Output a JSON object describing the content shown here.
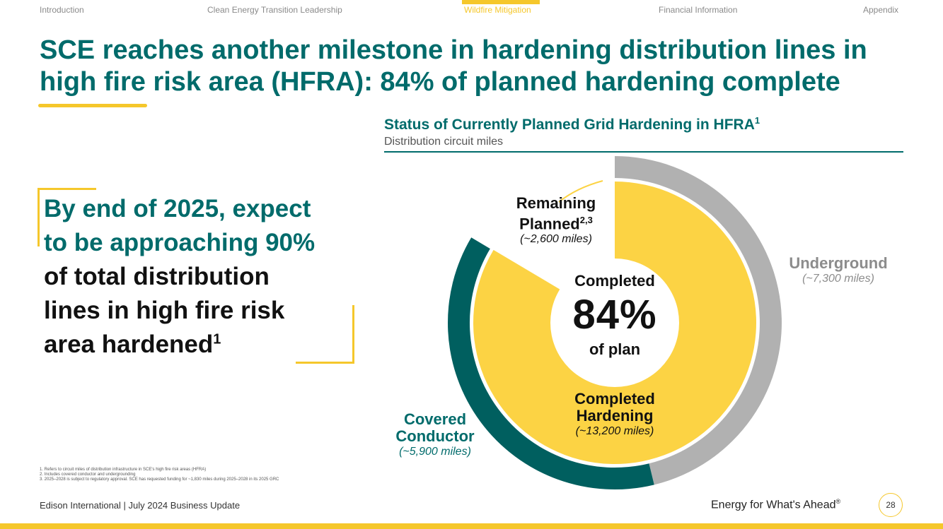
{
  "nav": {
    "items": [
      "Introduction",
      "Clean Energy Transition Leadership",
      "Wildfire Mitigation",
      "Financial Information",
      "Appendix"
    ],
    "active": "Wildfire Mitigation"
  },
  "title": {
    "line1": "SCE reaches another milestone in hardening distribution lines in",
    "line2": "high fire risk area (HFRA): 84% of planned hardening complete"
  },
  "callout": {
    "hl1": "By end of 2025, expect",
    "hl2": "to be approaching 90%",
    "body1": "of total distribution",
    "body2": "lines in high fire risk",
    "body3": "area hardened",
    "body3_sup": "1"
  },
  "chart": {
    "title": "Status of Currently Planned Grid Hardening in HFRA",
    "title_sup": "1",
    "subtitle": "Distribution circuit miles",
    "center_top": "Completed",
    "center_value": "84%",
    "center_bottom": "of plan",
    "labels": {
      "remaining_line1": "Remaining",
      "remaining_line2": "Planned",
      "remaining_sup": "2,3",
      "remaining_miles": "(~2,600 miles)",
      "underground": "Underground",
      "underground_miles": "(~7,300 miles)",
      "completed_line1": "Completed",
      "completed_line2": "Hardening",
      "completed_miles": "(~13,200 miles)",
      "covered_line1": "Covered",
      "covered_line2": "Conductor",
      "covered_miles": "(~5,900 miles)"
    },
    "colors": {
      "completed": "#fcd344",
      "remaining": "#ffffff",
      "underground": "#b1b1b1",
      "covered": "#005f5f",
      "teal_text": "#006b6b",
      "gray_text": "#8c8c8c"
    }
  },
  "chart_data": [
    {
      "type": "pie",
      "subtype": "donut-inner",
      "categories": [
        "Completed Hardening",
        "Remaining Planned"
      ],
      "values": [
        13200,
        2600
      ],
      "unit": "miles",
      "center_value_percent": 84
    },
    {
      "type": "pie",
      "subtype": "donut-outer",
      "categories": [
        "Underground",
        "Covered Conductor"
      ],
      "values": [
        7300,
        5900
      ],
      "unit": "miles"
    }
  ],
  "footnotes": [
    "1.  Refers to circuit miles of distribution infrastructure in SCE's high fire risk areas (HFRA)",
    "2.  Includes covered conductor and undergrounding",
    "3.  2025–2028 is subject to regulatory approval. SCE has requested funding for ~1,830 miles during 2025–2028 in its 2025 GRC"
  ],
  "footer": {
    "left": "Edison International |  July 2024 Business Update",
    "tagline": "Energy for What's Ahead",
    "tagline_mark": "®",
    "page": "28"
  }
}
